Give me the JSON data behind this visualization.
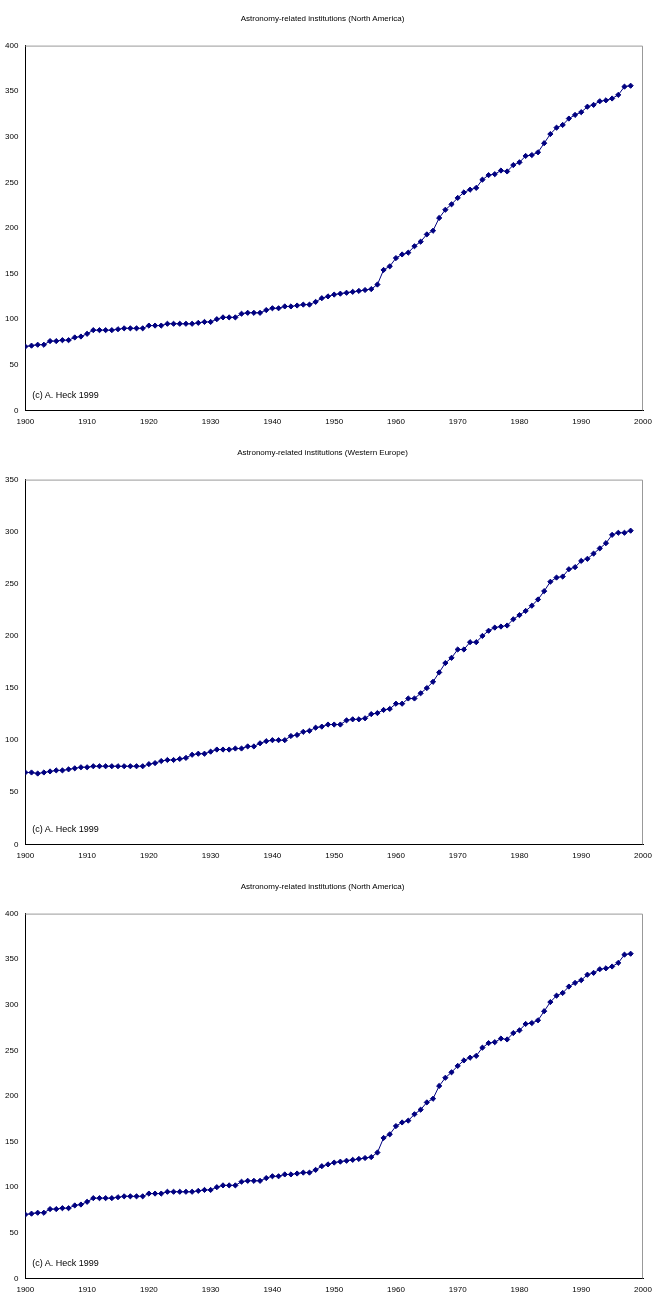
{
  "chart_data": [
    {
      "type": "line",
      "title": "Astronomy-related institutions (North America)",
      "x": [
        1900,
        1901,
        1902,
        1903,
        1904,
        1905,
        1906,
        1907,
        1908,
        1909,
        1910,
        1911,
        1912,
        1913,
        1914,
        1915,
        1916,
        1917,
        1918,
        1919,
        1920,
        1921,
        1922,
        1923,
        1924,
        1925,
        1926,
        1927,
        1928,
        1929,
        1930,
        1931,
        1932,
        1933,
        1934,
        1935,
        1936,
        1937,
        1938,
        1939,
        1940,
        1941,
        1942,
        1943,
        1944,
        1945,
        1946,
        1947,
        1948,
        1949,
        1950,
        1951,
        1952,
        1953,
        1954,
        1955,
        1956,
        1957,
        1958,
        1959,
        1960,
        1961,
        1962,
        1963,
        1964,
        1965,
        1966,
        1967,
        1968,
        1969,
        1970,
        1971,
        1972,
        1973,
        1974,
        1975,
        1976,
        1977,
        1978,
        1979,
        1980,
        1981,
        1982,
        1983,
        1984,
        1985,
        1986,
        1987,
        1988,
        1989,
        1990,
        1991,
        1992,
        1993,
        1994,
        1995,
        1996,
        1997,
        1998
      ],
      "series": [
        {
          "color": "#000080",
          "values": [
            70,
            71,
            72,
            72,
            76,
            76,
            77,
            77,
            80,
            81,
            84,
            88,
            88,
            88,
            88,
            89,
            90,
            90,
            90,
            90,
            93,
            93,
            93,
            95,
            95,
            95,
            95,
            95,
            96,
            97,
            97,
            100,
            102,
            102,
            102,
            106,
            107,
            107,
            107,
            110,
            112,
            112,
            114,
            114,
            115,
            116,
            116,
            119,
            123,
            125,
            127,
            128,
            129,
            130,
            131,
            132,
            133,
            138,
            154,
            158,
            167,
            171,
            173,
            180,
            185,
            193,
            197,
            211,
            220,
            226,
            233,
            239,
            242,
            244,
            253,
            258,
            259,
            263,
            262,
            269,
            272,
            279,
            280,
            283,
            293,
            303,
            310,
            313,
            320,
            324,
            327,
            333,
            335,
            339,
            340,
            342,
            346,
            355,
            356
          ]
        }
      ],
      "xlim": [
        1900,
        2000
      ],
      "xticks": [
        1900,
        1910,
        1920,
        1930,
        1940,
        1950,
        1960,
        1970,
        1980,
        1990,
        2000
      ],
      "ylim": [
        0,
        400
      ],
      "yticks": [
        0,
        50,
        100,
        150,
        200,
        250,
        300,
        350,
        400
      ],
      "grid": false,
      "legend": false,
      "marker": "diamond",
      "line_style": "solid",
      "annotations": [
        "(c) A. Heck 1999"
      ]
    },
    {
      "type": "line",
      "title": "Astronomy-related institutions (Western Europe)",
      "x": [
        1900,
        1901,
        1902,
        1903,
        1904,
        1905,
        1906,
        1907,
        1908,
        1909,
        1910,
        1911,
        1912,
        1913,
        1914,
        1915,
        1916,
        1917,
        1918,
        1919,
        1920,
        1921,
        1922,
        1923,
        1924,
        1925,
        1926,
        1927,
        1928,
        1929,
        1930,
        1931,
        1932,
        1933,
        1934,
        1935,
        1936,
        1937,
        1938,
        1939,
        1940,
        1941,
        1942,
        1943,
        1944,
        1945,
        1946,
        1947,
        1948,
        1949,
        1950,
        1951,
        1952,
        1953,
        1954,
        1955,
        1956,
        1957,
        1958,
        1959,
        1960,
        1961,
        1962,
        1963,
        1964,
        1965,
        1966,
        1967,
        1968,
        1969,
        1970,
        1971,
        1972,
        1973,
        1974,
        1975,
        1976,
        1977,
        1978,
        1979,
        1980,
        1981,
        1982,
        1983,
        1984,
        1985,
        1986,
        1987,
        1988,
        1989,
        1990,
        1991,
        1992,
        1993,
        1994,
        1995,
        1996,
        1997,
        1998
      ],
      "series": [
        {
          "color": "#000080",
          "values": [
            69,
            69,
            68,
            69,
            70,
            71,
            71,
            72,
            73,
            74,
            74,
            75,
            75,
            75,
            75,
            75,
            75,
            75,
            75,
            75,
            77,
            78,
            80,
            81,
            81,
            82,
            83,
            86,
            87,
            87,
            89,
            91,
            91,
            91,
            92,
            92,
            94,
            94,
            97,
            99,
            100,
            100,
            100,
            104,
            105,
            108,
            109,
            112,
            113,
            115,
            115,
            115,
            119,
            120,
            120,
            121,
            125,
            126,
            129,
            130,
            135,
            135,
            140,
            140,
            145,
            150,
            156,
            165,
            174,
            179,
            187,
            187,
            194,
            194,
            200,
            205,
            208,
            209,
            210,
            216,
            220,
            224,
            229,
            235,
            243,
            252,
            256,
            257,
            264,
            266,
            272,
            274,
            279,
            284,
            289,
            297,
            299,
            299,
            301
          ]
        }
      ],
      "xlim": [
        1900,
        2000
      ],
      "xticks": [
        1900,
        1910,
        1920,
        1930,
        1940,
        1950,
        1960,
        1970,
        1980,
        1990,
        2000
      ],
      "ylim": [
        0,
        350
      ],
      "yticks": [
        0,
        50,
        100,
        150,
        200,
        250,
        300,
        350
      ],
      "grid": false,
      "legend": false,
      "marker": "diamond",
      "line_style": "solid",
      "annotations": [
        "(c) A. Heck 1999"
      ]
    },
    {
      "type": "line",
      "title": "Astronomy-related institutions (North America)",
      "x": [
        1900,
        1901,
        1902,
        1903,
        1904,
        1905,
        1906,
        1907,
        1908,
        1909,
        1910,
        1911,
        1912,
        1913,
        1914,
        1915,
        1916,
        1917,
        1918,
        1919,
        1920,
        1921,
        1922,
        1923,
        1924,
        1925,
        1926,
        1927,
        1928,
        1929,
        1930,
        1931,
        1932,
        1933,
        1934,
        1935,
        1936,
        1937,
        1938,
        1939,
        1940,
        1941,
        1942,
        1943,
        1944,
        1945,
        1946,
        1947,
        1948,
        1949,
        1950,
        1951,
        1952,
        1953,
        1954,
        1955,
        1956,
        1957,
        1958,
        1959,
        1960,
        1961,
        1962,
        1963,
        1964,
        1965,
        1966,
        1967,
        1968,
        1969,
        1970,
        1971,
        1972,
        1973,
        1974,
        1975,
        1976,
        1977,
        1978,
        1979,
        1980,
        1981,
        1982,
        1983,
        1984,
        1985,
        1986,
        1987,
        1988,
        1989,
        1990,
        1991,
        1992,
        1993,
        1994,
        1995,
        1996,
        1997,
        1998
      ],
      "series": [
        {
          "color": "#000080",
          "values": [
            70,
            71,
            72,
            72,
            76,
            76,
            77,
            77,
            80,
            81,
            84,
            88,
            88,
            88,
            88,
            89,
            90,
            90,
            90,
            90,
            93,
            93,
            93,
            95,
            95,
            95,
            95,
            95,
            96,
            97,
            97,
            100,
            102,
            102,
            102,
            106,
            107,
            107,
            107,
            110,
            112,
            112,
            114,
            114,
            115,
            116,
            116,
            119,
            123,
            125,
            127,
            128,
            129,
            130,
            131,
            132,
            133,
            138,
            154,
            158,
            167,
            171,
            173,
            180,
            185,
            193,
            197,
            211,
            220,
            226,
            233,
            239,
            242,
            244,
            253,
            258,
            259,
            263,
            262,
            269,
            272,
            279,
            280,
            283,
            293,
            303,
            310,
            313,
            320,
            324,
            327,
            333,
            335,
            339,
            340,
            342,
            346,
            355,
            356
          ]
        }
      ],
      "xlim": [
        1900,
        2000
      ],
      "xticks": [
        1900,
        1910,
        1920,
        1930,
        1940,
        1950,
        1960,
        1970,
        1980,
        1990,
        2000
      ],
      "ylim": [
        0,
        400
      ],
      "yticks": [
        0,
        50,
        100,
        150,
        200,
        250,
        300,
        350,
        400
      ],
      "grid": false,
      "legend": false,
      "marker": "diamond",
      "line_style": "solid",
      "annotations": [
        "(c) A. Heck 1999"
      ]
    }
  ]
}
